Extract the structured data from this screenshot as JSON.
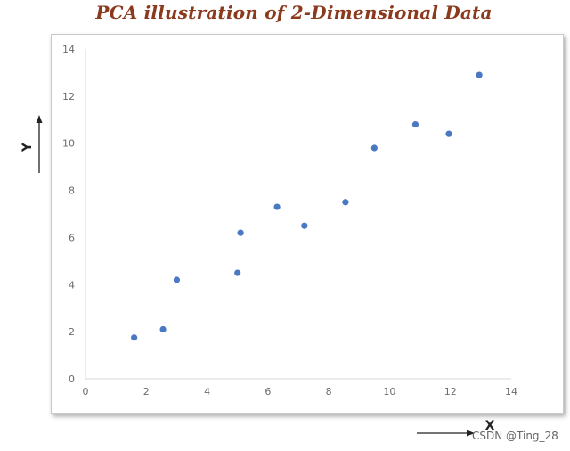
{
  "chart_data": {
    "type": "scatter",
    "title": "PCA illustration of 2-Dimensional Data",
    "xlabel": "X",
    "ylabel": "Y",
    "xlim": [
      0,
      14
    ],
    "ylim": [
      0,
      14
    ],
    "xticks": [
      0,
      2,
      4,
      6,
      8,
      10,
      12,
      14
    ],
    "yticks": [
      0,
      2,
      4,
      6,
      8,
      10,
      12,
      14
    ],
    "grid": false,
    "marker_color": "#4a78c2",
    "series": [
      {
        "points": [
          {
            "x": 1.6,
            "y": 1.75
          },
          {
            "x": 2.55,
            "y": 2.1
          },
          {
            "x": 3.0,
            "y": 4.2
          },
          {
            "x": 5.0,
            "y": 4.5
          },
          {
            "x": 5.1,
            "y": 6.2
          },
          {
            "x": 6.3,
            "y": 7.3
          },
          {
            "x": 7.2,
            "y": 6.5
          },
          {
            "x": 8.55,
            "y": 7.5
          },
          {
            "x": 9.5,
            "y": 9.8
          },
          {
            "x": 10.85,
            "y": 10.8
          },
          {
            "x": 11.95,
            "y": 10.4
          },
          {
            "x": 12.95,
            "y": 12.9
          }
        ]
      }
    ]
  },
  "watermark": "CSDN @Ting_28"
}
